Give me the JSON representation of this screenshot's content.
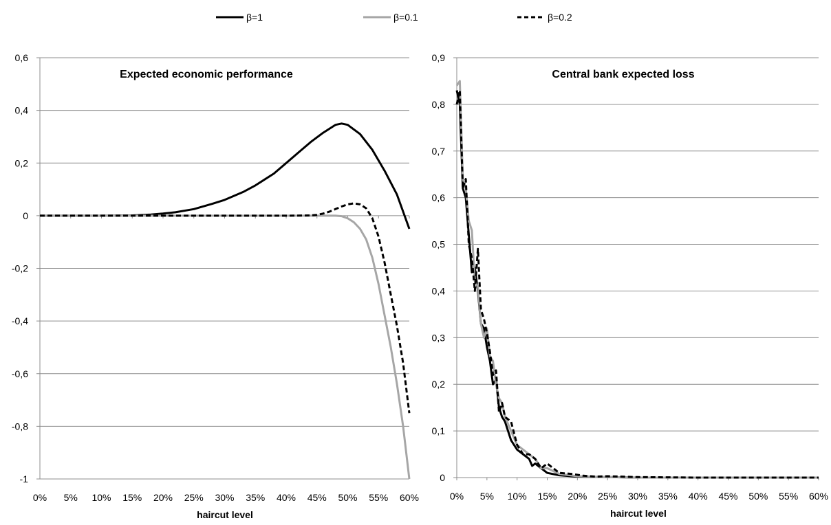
{
  "legend": {
    "placement": "top-center",
    "items": [
      {
        "label": "β=1",
        "color": "#000000",
        "style": "solid"
      },
      {
        "label": "β=0.1",
        "color": "#a6a6a6",
        "style": "solid"
      },
      {
        "label": "β=0.2",
        "color": "#000000",
        "style": "dashed"
      }
    ]
  },
  "chart_data": [
    {
      "type": "line",
      "title": "Expected economic performance",
      "xlabel": "haircut level",
      "ylabel": "",
      "x_tick_labels": [
        "0%",
        "5%",
        "10%",
        "15%",
        "20%",
        "25%",
        "30%",
        "35%",
        "40%",
        "45%",
        "50%",
        "55%",
        "60%"
      ],
      "y_tick_labels": [
        "0,6",
        "0,4",
        "0,2",
        "0",
        "-0,2",
        "-0,4",
        "-0,6",
        "-0,8",
        "-1"
      ],
      "xlim": [
        0,
        60
      ],
      "ylim": [
        -1,
        0.6
      ],
      "grid": "horizontal",
      "series": [
        {
          "name": "β=1",
          "color": "#000000",
          "style": "solid",
          "x": [
            0,
            5,
            10,
            15,
            18,
            20,
            22,
            25,
            28,
            30,
            33,
            35,
            38,
            40,
            42,
            44,
            46,
            48,
            49,
            50,
            52,
            54,
            56,
            58,
            60
          ],
          "y": [
            0,
            0,
            0,
            0.001,
            0.004,
            0.008,
            0.013,
            0.025,
            0.045,
            0.06,
            0.09,
            0.115,
            0.16,
            0.2,
            0.24,
            0.28,
            0.315,
            0.345,
            0.35,
            0.345,
            0.31,
            0.25,
            0.17,
            0.08,
            -0.05
          ]
        },
        {
          "name": "β=0.1",
          "color": "#a6a6a6",
          "style": "solid",
          "x": [
            0,
            10,
            20,
            30,
            40,
            45,
            47,
            48,
            49,
            50,
            51,
            52,
            53,
            54,
            55,
            56,
            57,
            58,
            59,
            60
          ],
          "y": [
            0,
            0,
            0,
            0,
            0,
            0,
            0,
            0,
            -0.002,
            -0.01,
            -0.025,
            -0.05,
            -0.09,
            -0.16,
            -0.26,
            -0.38,
            -0.5,
            -0.64,
            -0.8,
            -1.0
          ]
        },
        {
          "name": "β=0.2",
          "color": "#000000",
          "style": "dashed",
          "x": [
            0,
            10,
            20,
            30,
            40,
            44,
            45,
            46,
            47,
            48,
            49,
            50,
            51,
            52,
            53,
            54,
            55,
            56,
            57,
            58,
            59,
            60
          ],
          "y": [
            0,
            0,
            0,
            0,
            0,
            0.001,
            0.003,
            0.008,
            0.015,
            0.025,
            0.035,
            0.043,
            0.047,
            0.043,
            0.028,
            -0.01,
            -0.08,
            -0.18,
            -0.3,
            -0.42,
            -0.56,
            -0.75
          ]
        }
      ]
    },
    {
      "type": "line",
      "title": "Central bank expected loss",
      "xlabel": "haircut level",
      "ylabel": "",
      "x_tick_labels": [
        "0%",
        "5%",
        "10%",
        "15%",
        "20%",
        "25%",
        "30%",
        "35%",
        "40%",
        "45%",
        "50%",
        "55%",
        "60%"
      ],
      "y_tick_labels": [
        "0,9",
        "0,8",
        "0,7",
        "0,6",
        "0,5",
        "0,4",
        "0,3",
        "0,2",
        "0,1",
        "0"
      ],
      "xlim": [
        0,
        60
      ],
      "ylim": [
        0,
        0.9
      ],
      "grid": "horizontal",
      "series": [
        {
          "name": "β=1",
          "color": "#000000",
          "style": "solid",
          "x": [
            0,
            0.5,
            1,
            1.5,
            2,
            2.5,
            3,
            3.5,
            4,
            4.5,
            5,
            5.5,
            6,
            6.5,
            7,
            7.5,
            8,
            9,
            10,
            11,
            12,
            12.5,
            13,
            14,
            15,
            17,
            20,
            25,
            30,
            40,
            50,
            60
          ],
          "y": [
            0.83,
            0.8,
            0.62,
            0.6,
            0.52,
            0.44,
            0.45,
            0.4,
            0.33,
            0.32,
            0.28,
            0.25,
            0.2,
            0.21,
            0.15,
            0.13,
            0.12,
            0.08,
            0.06,
            0.05,
            0.04,
            0.025,
            0.03,
            0.02,
            0.01,
            0.005,
            0.002,
            0.001,
            0,
            0,
            0,
            0
          ]
        },
        {
          "name": "β=0.1",
          "color": "#a6a6a6",
          "style": "solid",
          "x": [
            0,
            0.5,
            1,
            1.5,
            2,
            2.5,
            3,
            3.5,
            4,
            4.5,
            5,
            5.5,
            6,
            6.5,
            7,
            7.5,
            8,
            9,
            10,
            11,
            12,
            13,
            14,
            15,
            17,
            20,
            25,
            30,
            40,
            50,
            60
          ],
          "y": [
            0.84,
            0.85,
            0.64,
            0.62,
            0.55,
            0.53,
            0.42,
            0.41,
            0.33,
            0.3,
            0.32,
            0.26,
            0.25,
            0.2,
            0.17,
            0.16,
            0.13,
            0.1,
            0.07,
            0.06,
            0.05,
            0.04,
            0.02,
            0.02,
            0.008,
            0.003,
            0.001,
            0,
            0,
            0,
            0
          ]
        },
        {
          "name": "β=0.2",
          "color": "#000000",
          "style": "dashed",
          "x": [
            0,
            0.5,
            1,
            1.5,
            2,
            2.5,
            3,
            3.5,
            4,
            4.5,
            5,
            5.5,
            6,
            6.5,
            7,
            7.5,
            8,
            9,
            10,
            11,
            12,
            13,
            14,
            15,
            17,
            19,
            21,
            23,
            25,
            30,
            40,
            50,
            60
          ],
          "y": [
            0.8,
            0.83,
            0.62,
            0.64,
            0.5,
            0.47,
            0.4,
            0.49,
            0.36,
            0.34,
            0.31,
            0.27,
            0.22,
            0.23,
            0.14,
            0.16,
            0.13,
            0.12,
            0.07,
            0.05,
            0.05,
            0.04,
            0.02,
            0.03,
            0.01,
            0.008,
            0.004,
            0.002,
            0.003,
            0.001,
            0,
            0,
            0
          ]
        }
      ]
    }
  ]
}
